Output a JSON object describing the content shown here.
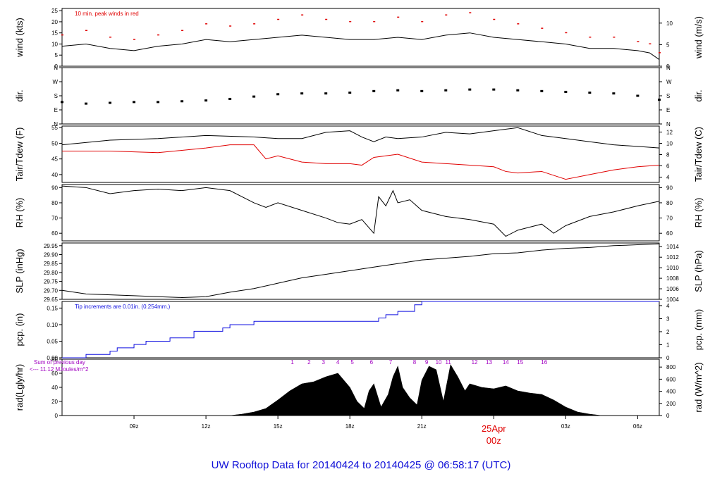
{
  "title": "UW Rooftop Data for 20140424  to  20140425 @ 06:58:17  (UTC)",
  "colors": {
    "black": "#000000",
    "red": "#e00000",
    "blue": "#1010e0",
    "purple": "#a000c0",
    "title": "#1010d8"
  },
  "chart_data": [
    {
      "id": "wind",
      "type": "line",
      "ylabel_left": "wind (kts)",
      "ylabel_right": "wind (m/s)",
      "ylim": [
        0,
        26
      ],
      "yticks": [
        0,
        5,
        10,
        15,
        20,
        25
      ],
      "rlim": [
        0,
        13.4
      ],
      "rticks": [
        0,
        5,
        10
      ],
      "annotation": "10 min. peak winds in red",
      "series": [
        {
          "name": "wind speed (kts)",
          "color": "#000000",
          "x": [
            6.0,
            7.0,
            8.0,
            9.0,
            10.0,
            11.0,
            12.0,
            13.0,
            14.0,
            15.0,
            16.0,
            17.0,
            18.0,
            19.0,
            20.0,
            21.0,
            22.0,
            23.0,
            24.0,
            25.0,
            26.0,
            27.0,
            28.0,
            29.0,
            30.0,
            30.5,
            30.9
          ],
          "y": [
            9,
            10,
            8,
            7,
            9,
            10,
            12,
            11,
            12,
            13,
            14,
            13,
            12,
            12,
            13,
            12,
            14,
            15,
            13,
            12,
            11,
            10,
            8,
            8,
            7,
            6,
            3
          ]
        },
        {
          "name": "10 min peak (kts)",
          "color": "#e00000",
          "style": "dots",
          "x": [
            6.0,
            7.0,
            8.0,
            9.0,
            10.0,
            11.0,
            12.0,
            13.0,
            14.0,
            15.0,
            16.0,
            17.0,
            18.0,
            19.0,
            20.0,
            21.0,
            22.0,
            23.0,
            24.0,
            25.0,
            26.0,
            27.0,
            28.0,
            29.0,
            30.0,
            30.5,
            30.9
          ],
          "y": [
            14,
            16,
            13,
            12,
            14,
            16,
            19,
            18,
            19,
            21,
            23,
            21,
            20,
            20,
            22,
            20,
            23,
            24,
            21,
            19,
            17,
            15,
            13,
            13,
            11,
            10,
            6
          ]
        }
      ]
    },
    {
      "id": "dir",
      "type": "scatter",
      "ylabel_left": "dir.",
      "ylabel_right": "dir.",
      "ylim": [
        0,
        360
      ],
      "yticks": [
        "N",
        "E",
        "S",
        "W",
        "N"
      ],
      "ytick_values": [
        0,
        90,
        180,
        270,
        360
      ],
      "series": [
        {
          "name": "wind direction (deg)",
          "color": "#000000",
          "x": [
            6.0,
            7.0,
            8.0,
            9.0,
            10.0,
            11.0,
            12.0,
            13.0,
            14.0,
            15.0,
            16.0,
            17.0,
            18.0,
            19.0,
            20.0,
            21.0,
            22.0,
            23.0,
            24.0,
            25.0,
            26.0,
            27.0,
            28.0,
            29.0,
            30.0,
            30.9
          ],
          "y": [
            140,
            130,
            135,
            140,
            140,
            145,
            150,
            160,
            175,
            190,
            195,
            195,
            200,
            210,
            215,
            210,
            215,
            220,
            220,
            215,
            210,
            205,
            200,
            195,
            180,
            155
          ]
        }
      ]
    },
    {
      "id": "temp",
      "type": "line",
      "ylabel_left": "Tair/Tdew (F)",
      "ylabel_right": "Tair/Tdew (C)",
      "ylim": [
        37.5,
        55.5
      ],
      "yticks": [
        40,
        45,
        50,
        55
      ],
      "rlim": [
        3.06,
        13.06
      ],
      "rticks": [
        4,
        6,
        8,
        10,
        12
      ],
      "series": [
        {
          "name": "Tair (F)",
          "color": "#000000",
          "x": [
            6.0,
            8.0,
            10.0,
            12.0,
            14.0,
            15.0,
            16.0,
            17.0,
            18.0,
            18.5,
            19.0,
            19.5,
            20.0,
            21.0,
            22.0,
            23.0,
            24.0,
            25.0,
            26.0,
            27.0,
            28.0,
            29.0,
            30.0,
            30.9
          ],
          "y": [
            49.5,
            51,
            51.5,
            52.5,
            52,
            51.5,
            51.5,
            53.5,
            54,
            52,
            50.5,
            52,
            51.5,
            52,
            53.5,
            53,
            54,
            55,
            52.5,
            51.5,
            50.5,
            49.5,
            49,
            48.5
          ]
        },
        {
          "name": "Tdew (F)",
          "color": "#e00000",
          "x": [
            6.0,
            8.0,
            10.0,
            12.0,
            13.0,
            14.0,
            14.5,
            15.0,
            16.0,
            17.0,
            18.0,
            18.5,
            19.0,
            19.5,
            20.0,
            21.0,
            22.0,
            23.0,
            24.0,
            24.5,
            25.0,
            26.0,
            27.0,
            28.0,
            29.0,
            30.0,
            30.9
          ],
          "y": [
            47.5,
            47.5,
            47,
            48.5,
            49.5,
            49.5,
            45,
            46,
            44,
            43.5,
            43.5,
            43,
            45.5,
            46,
            46.5,
            44,
            43.5,
            43,
            42.5,
            41,
            40.5,
            41,
            38.5,
            40,
            41.5,
            42.5,
            43
          ]
        }
      ]
    },
    {
      "id": "rh",
      "type": "line",
      "ylabel_left": "RH (%)",
      "ylabel_right": "RH (%)",
      "ylim": [
        55,
        92
      ],
      "yticks": [
        60,
        70,
        80,
        90
      ],
      "series": [
        {
          "name": "RH (%)",
          "color": "#000000",
          "x": [
            6.0,
            7.0,
            8.0,
            9.0,
            10.0,
            11.0,
            12.0,
            13.0,
            14.0,
            14.5,
            15.0,
            16.0,
            17.0,
            17.5,
            18.0,
            18.5,
            19.0,
            19.2,
            19.5,
            19.8,
            20.0,
            20.5,
            21.0,
            22.0,
            23.0,
            24.0,
            24.5,
            25.0,
            25.5,
            26.0,
            26.5,
            27.0,
            28.0,
            29.0,
            30.0,
            30.9
          ],
          "y": [
            91,
            90,
            86,
            88,
            89,
            88,
            90,
            88,
            80,
            77,
            80,
            75,
            70,
            67,
            66,
            69,
            60,
            84,
            78,
            88,
            80,
            82,
            75,
            71,
            69,
            66,
            58,
            62,
            64,
            66,
            60,
            65,
            71,
            74,
            78,
            81
          ]
        }
      ]
    },
    {
      "id": "slp",
      "type": "line",
      "ylabel_left": "SLP (inHg)",
      "ylabel_right": "SLP (hPa)",
      "ylim": [
        29.65,
        29.965
      ],
      "yticks": [
        29.65,
        29.7,
        29.75,
        29.8,
        29.85,
        29.9,
        29.95
      ],
      "rlim": [
        1004.0,
        1014.7
      ],
      "rticks": [
        1004,
        1006,
        1008,
        1010,
        1012,
        1014
      ],
      "series": [
        {
          "name": "SLP (inHg)",
          "color": "#000000",
          "x": [
            6.0,
            7.0,
            8.0,
            9.0,
            10.0,
            11.0,
            12.0,
            13.0,
            14.0,
            15.0,
            16.0,
            17.0,
            18.0,
            19.0,
            20.0,
            21.0,
            22.0,
            23.0,
            24.0,
            25.0,
            26.0,
            27.0,
            28.0,
            29.0,
            30.0,
            30.9
          ],
          "y": [
            29.7,
            29.68,
            29.675,
            29.67,
            29.665,
            29.66,
            29.665,
            29.69,
            29.71,
            29.74,
            29.77,
            29.79,
            29.81,
            29.83,
            29.85,
            29.87,
            29.88,
            29.89,
            29.905,
            29.91,
            29.925,
            29.935,
            29.94,
            29.95,
            29.955,
            29.96
          ]
        }
      ]
    },
    {
      "id": "pcp",
      "type": "line",
      "ylabel_left": "pcp. (in)",
      "ylabel_right": "pcp. (mm)",
      "ylim": [
        0,
        0.17
      ],
      "yticks": [
        0.0,
        0.05,
        0.1,
        0.15
      ],
      "rlim": [
        0,
        4.32
      ],
      "rticks": [
        0,
        1,
        2,
        3,
        4
      ],
      "annotation": "Tip increments are 0.01in. (0.254mm.)",
      "series": [
        {
          "name": "accumulated precip (in)",
          "color": "#1010e0",
          "step": true,
          "x": [
            6.0,
            7.0,
            8.0,
            8.3,
            9.0,
            9.5,
            10.5,
            11.5,
            12.7,
            13.0,
            14.0,
            15.0,
            16.0,
            17.0,
            18.0,
            19.0,
            19.2,
            19.5,
            20.0,
            20.7,
            21.0,
            22.0,
            23.0,
            24.0,
            25.0,
            26.0,
            27.0,
            28.0,
            29.0,
            30.0,
            30.9
          ],
          "y": [
            0.0,
            0.01,
            0.02,
            0.03,
            0.04,
            0.05,
            0.06,
            0.08,
            0.09,
            0.1,
            0.11,
            0.11,
            0.11,
            0.11,
            0.11,
            0.11,
            0.12,
            0.13,
            0.14,
            0.16,
            0.17,
            0.17,
            0.17,
            0.17,
            0.17,
            0.17,
            0.17,
            0.17,
            0.17,
            0.17,
            0.17
          ]
        }
      ]
    },
    {
      "id": "rad",
      "type": "area",
      "ylabel_left": "rad(Lgly/hr)",
      "ylabel_right": "rad (W/m^2)",
      "ylim": [
        0,
        80
      ],
      "yticks": [
        0,
        20,
        40,
        60,
        80
      ],
      "rlim": [
        0,
        930
      ],
      "rticks": [
        0,
        200,
        400,
        600,
        800
      ],
      "annotation_lines": [
        "Sum of previous day",
        "<--- 11.12 MJoules/m^2"
      ],
      "hour_markers": [
        "1",
        "2",
        "3",
        "4",
        "5",
        "6",
        "7",
        "8",
        "9",
        "10",
        "11",
        "12",
        "13",
        "14",
        "15",
        "16"
      ],
      "hour_marker_x": [
        15.6,
        16.3,
        16.9,
        17.5,
        18.1,
        18.9,
        19.7,
        20.7,
        21.2,
        21.7,
        22.1,
        23.2,
        23.8,
        24.5,
        25.1,
        26.1
      ],
      "series": [
        {
          "name": "solar radiation (Lgly/hr)",
          "color": "#000000",
          "x": [
            6.0,
            13.0,
            13.5,
            14.0,
            14.5,
            15.0,
            15.5,
            16.0,
            16.5,
            17.0,
            17.5,
            18.0,
            18.3,
            18.6,
            18.8,
            19.0,
            19.3,
            19.6,
            19.8,
            20.0,
            20.2,
            20.5,
            20.8,
            21.0,
            21.3,
            21.6,
            21.9,
            22.2,
            22.5,
            22.8,
            23.0,
            23.5,
            24.0,
            24.5,
            25.0,
            25.5,
            26.0,
            26.5,
            27.0,
            27.5,
            28.0,
            28.5,
            30.9
          ],
          "y": [
            0,
            0,
            2,
            5,
            10,
            22,
            35,
            45,
            48,
            55,
            60,
            40,
            20,
            10,
            35,
            45,
            12,
            30,
            55,
            70,
            40,
            25,
            15,
            50,
            70,
            65,
            20,
            72,
            55,
            35,
            45,
            40,
            38,
            42,
            35,
            32,
            30,
            22,
            12,
            5,
            2,
            0,
            0
          ]
        }
      ]
    }
  ],
  "x_axis": {
    "ticks": [
      "09z",
      "12z",
      "15z",
      "18z",
      "21z",
      "00z",
      "03z",
      "06z"
    ],
    "tick_hours": [
      9,
      12,
      15,
      18,
      21,
      24,
      27,
      30
    ],
    "date_label": "25Apr",
    "midnight_label": "00z"
  }
}
